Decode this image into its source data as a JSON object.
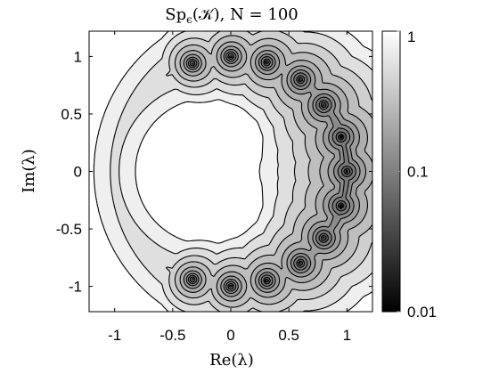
{
  "chart_data": {
    "type": "heatmap",
    "subtype": "contour",
    "title": "Spϵ(𝒦), N = 100",
    "title_parts": {
      "main": "Sp",
      "subscript": "ϵ",
      "tail": "(𝒦), N = 100"
    },
    "xlabel": "Re(λ)",
    "ylabel": "Im(λ)",
    "xlim": [
      -1.22,
      1.22
    ],
    "ylim": [
      -1.22,
      1.22
    ],
    "x_ticks": [
      -1,
      -0.5,
      0,
      0.5,
      1
    ],
    "x_tick_labels": [
      "-1",
      "-0.5",
      "0",
      "0.5",
      "1"
    ],
    "y_ticks": [
      1,
      0.5,
      0,
      -0.5,
      -1
    ],
    "y_tick_labels": [
      "1",
      "0.5",
      "0",
      "-0.5",
      "-1"
    ],
    "colorbar": {
      "scale": "log",
      "range": [
        0.01,
        1
      ],
      "ticks": [
        1,
        0.1,
        0.01
      ],
      "tick_labels": [
        "1",
        "0.1",
        "0.01"
      ],
      "colormap": "gray"
    },
    "eigenvalues_near_unit_circle": [
      {
        "re": 1.0,
        "im": 0.0
      },
      {
        "re": 0.95,
        "im": 0.3
      },
      {
        "re": 0.95,
        "im": -0.3
      },
      {
        "re": 0.8,
        "im": 0.58
      },
      {
        "re": 0.8,
        "im": -0.58
      },
      {
        "re": 0.6,
        "im": 0.8
      },
      {
        "re": 0.6,
        "im": -0.8
      },
      {
        "re": 0.31,
        "im": 0.95
      },
      {
        "re": 0.31,
        "im": -0.95
      },
      {
        "re": 0.0,
        "im": 1.0
      },
      {
        "re": 0.0,
        "im": -1.0
      },
      {
        "re": -0.33,
        "im": 0.94
      },
      {
        "re": -0.33,
        "im": -0.94
      }
    ],
    "contour_levels_log10": [
      -1.95,
      -1.8,
      -1.6,
      -1.4,
      -1.2,
      -1.0,
      -0.85,
      -0.7,
      -0.55,
      -0.4,
      -0.27,
      -0.15,
      -0.05
    ],
    "grid": false
  }
}
